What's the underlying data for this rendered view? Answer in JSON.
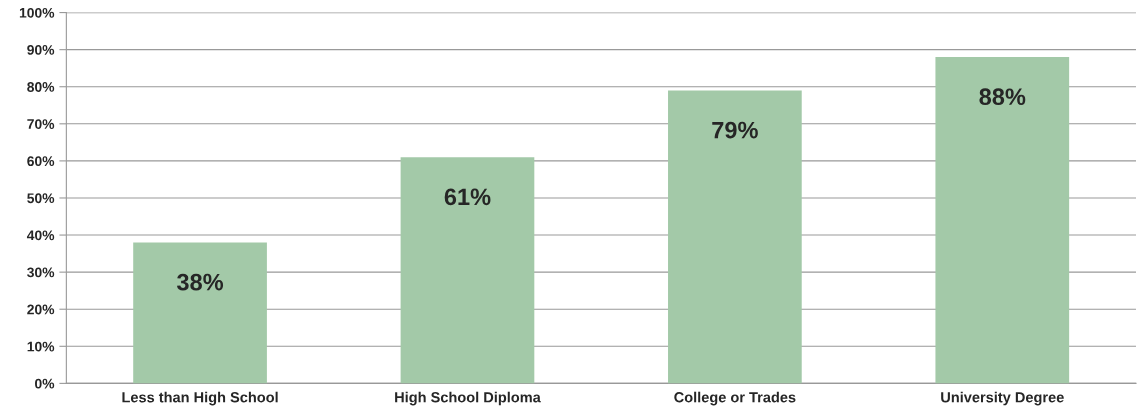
{
  "chart_data": {
    "type": "bar",
    "categories": [
      "Less than High School",
      "High School Diploma",
      "College or Trades",
      "University Degree"
    ],
    "values": [
      38,
      61,
      79,
      88
    ],
    "value_labels": [
      "38%",
      "61%",
      "79%",
      "88%"
    ],
    "color": "#a3c9a8",
    "ylim": [
      0,
      100
    ],
    "yticks": [
      {
        "value": 0,
        "label": "0%"
      },
      {
        "value": 10,
        "label": "10%"
      },
      {
        "value": 20,
        "label": "20%"
      },
      {
        "value": 30,
        "label": "30%"
      },
      {
        "value": 40,
        "label": "40%"
      },
      {
        "value": 50,
        "label": "50%"
      },
      {
        "value": 60,
        "label": "60%"
      },
      {
        "value": 70,
        "label": "70%"
      },
      {
        "value": 80,
        "label": "80%"
      },
      {
        "value": 90,
        "label": "90%"
      },
      {
        "value": 100,
        "label": "100%"
      }
    ],
    "grid": "y"
  }
}
